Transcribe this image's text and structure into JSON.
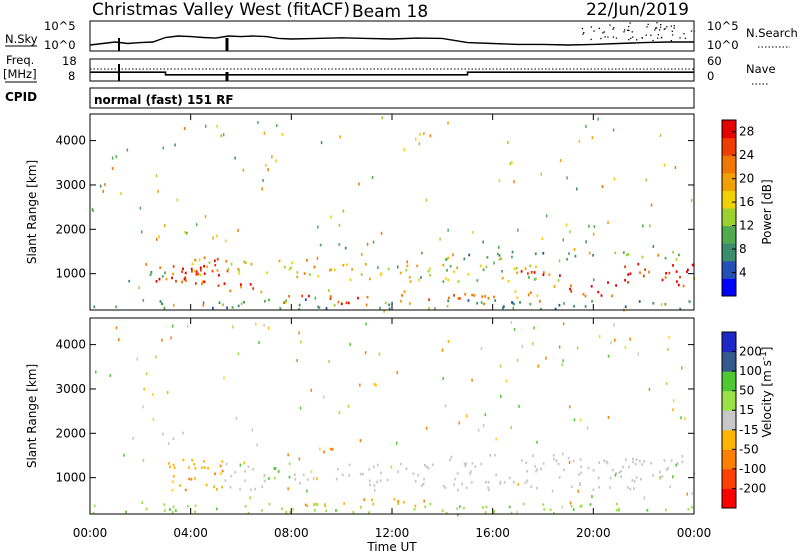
{
  "header": {
    "station": "Christmas Valley West (fitACF)",
    "beam": "Beam 18",
    "date": "22/Jun/2019"
  },
  "status_panels": {
    "nsky_label": "N.Sky",
    "nsearch_label": "N.Search",
    "noise_ticks": [
      "10^5",
      "10^0"
    ],
    "freq_label": "Freq.",
    "freq_unit": "[MHz]",
    "freq_ticks": [
      "18",
      "8"
    ],
    "nave_label": "Nave",
    "nave_ticks": [
      "60",
      "0"
    ],
    "cpid_label": "CPID",
    "cpid_text": "normal (fast) 151 RF"
  },
  "colors": {
    "power": [
      "#0000ff",
      "#2250b4",
      "#3c8c6e",
      "#50aa50",
      "#9bd232",
      "#f0d200",
      "#f0a000",
      "#f07800",
      "#f03c00",
      "#e60000"
    ],
    "velocity": [
      "#ff0000",
      "#ff4000",
      "#ff8000",
      "#ffb400",
      "#ffd220",
      "#c8c8c8",
      "#c8c8c8",
      "#9ae246",
      "#50c832",
      "#3c8c46",
      "#325a8c",
      "#2846b4",
      "#1e28c8"
    ]
  },
  "chart_data": [
    {
      "type": "line",
      "name": "noise-panel",
      "ylabel": "N.Sky",
      "yticks": [
        "10^5",
        "10^0"
      ],
      "series": [
        {
          "values_hours": [
            0,
            0.5,
            1,
            1.5,
            2,
            2.5,
            3,
            3.5,
            4,
            4.5,
            5,
            5.5,
            6,
            6.5,
            7,
            7.5,
            8,
            9,
            10,
            11,
            12,
            13,
            14,
            15,
            16,
            17,
            18,
            19,
            20,
            21,
            22,
            23,
            24
          ],
          "level_fraction": [
            0.2,
            0.25,
            0.3,
            0.25,
            0.28,
            0.3,
            0.45,
            0.5,
            0.48,
            0.45,
            0.43,
            0.5,
            0.48,
            0.5,
            0.48,
            0.42,
            0.4,
            0.42,
            0.44,
            0.42,
            0.4,
            0.43,
            0.42,
            0.28,
            0.25,
            0.22,
            0.22,
            0.2,
            0.22,
            0.25,
            0.28,
            0.3,
            0.3
          ]
        }
      ]
    },
    {
      "type": "line",
      "name": "frequency-panel",
      "ylabel": "Freq. [MHz]",
      "yticks": [
        "18",
        "8"
      ],
      "y2ticks": [
        "60",
        "0"
      ],
      "series": [
        {
          "name": "Freq.",
          "x_hours": [
            0,
            3,
            3,
            15,
            15,
            24
          ],
          "y": [
            12,
            12,
            10.8,
            10.8,
            12,
            12
          ]
        }
      ]
    },
    {
      "type": "heatmap",
      "name": "power",
      "ylabel": "Slant Range [km]",
      "xlabel": "Time UT",
      "x_ticks": [
        "00:00",
        "04:00",
        "08:00",
        "12:00",
        "16:00",
        "20:00",
        "00:00"
      ],
      "xlim_hours": [
        0,
        24
      ],
      "y_ticks": [
        1000,
        2000,
        3000,
        4000
      ],
      "ylim_km": [
        180,
        4600
      ],
      "colorbar_label": "Power [dB]",
      "colorbar_ticks": [
        4,
        8,
        12,
        16,
        20,
        24,
        28
      ],
      "colorbar_range": [
        0,
        30
      ],
      "regions": [
        {
          "t": [
            0,
            24
          ],
          "r": [
            180,
            400
          ],
          "v": 8,
          "d": 0.5
        },
        {
          "t": [
            1,
            3
          ],
          "r": [
            800,
            1100
          ],
          "v": 10,
          "d": 0.35
        },
        {
          "t": [
            2.7,
            4
          ],
          "r": [
            1800,
            2000
          ],
          "v": 12,
          "d": 0.5
        },
        {
          "t": [
            2.5,
            4.4
          ],
          "r": [
            800,
            1200
          ],
          "v": 25,
          "d": 0.8
        },
        {
          "t": [
            3.6,
            5.5
          ],
          "r": [
            700,
            1400
          ],
          "v": 27,
          "d": 0.8
        },
        {
          "t": [
            4,
            9
          ],
          "r": [
            900,
            1300
          ],
          "v": 18,
          "d": 0.6
        },
        {
          "t": [
            5.5,
            7
          ],
          "r": [
            500,
            800
          ],
          "v": 24,
          "d": 0.6
        },
        {
          "t": [
            7,
            11
          ],
          "r": [
            300,
            500
          ],
          "v": 26,
          "d": 0.7
        },
        {
          "t": [
            9,
            13
          ],
          "r": [
            800,
            1200
          ],
          "v": 16,
          "d": 0.55
        },
        {
          "t": [
            9,
            10.5
          ],
          "r": [
            1550,
            1700
          ],
          "v": 10,
          "d": 0.5
        },
        {
          "t": [
            13,
            14.3
          ],
          "r": [
            800,
            1500
          ],
          "v": 14,
          "d": 0.5
        },
        {
          "t": [
            14,
            24
          ],
          "r": [
            1300,
            1500
          ],
          "v": 10,
          "d": 0.55
        },
        {
          "t": [
            14,
            19
          ],
          "r": [
            800,
            1200
          ],
          "v": 16,
          "d": 0.55
        },
        {
          "t": [
            17,
            19.5
          ],
          "r": [
            900,
            1100
          ],
          "v": 26,
          "d": 0.65
        },
        {
          "t": [
            19,
            21
          ],
          "r": [
            400,
            800
          ],
          "v": 26,
          "d": 0.6
        },
        {
          "t": [
            21,
            24
          ],
          "r": [
            700,
            1200
          ],
          "v": 28,
          "d": 0.7
        },
        {
          "t": [
            12,
            18
          ],
          "r": [
            300,
            600
          ],
          "v": 22,
          "d": 0.5
        }
      ]
    },
    {
      "type": "heatmap",
      "name": "velocity",
      "ylabel": "Slant Range [km]",
      "xlabel": "Time UT",
      "x_ticks": [
        "00:00",
        "04:00",
        "08:00",
        "12:00",
        "16:00",
        "20:00",
        "00:00"
      ],
      "xlim_hours": [
        0,
        24
      ],
      "y_ticks": [
        1000,
        2000,
        3000,
        4000
      ],
      "ylim_km": [
        180,
        4600
      ],
      "colorbar_label": "Velocity [m s^-1]",
      "colorbar_ticks": [
        -200,
        -100,
        -50,
        -15,
        15,
        50,
        100,
        200
      ],
      "colorbar_range": [
        -250,
        250
      ],
      "regions": [
        {
          "t": [
            0,
            24
          ],
          "r": [
            180,
            400
          ],
          "v": 40,
          "d": 0.55
        },
        {
          "t": [
            2.7,
            4
          ],
          "r": [
            1800,
            2000
          ],
          "v": 0,
          "d": 0.5
        },
        {
          "t": [
            3,
            5.3
          ],
          "r": [
            700,
            1400
          ],
          "v": -40,
          "d": 0.85
        },
        {
          "t": [
            5.3,
            7
          ],
          "r": [
            700,
            1300
          ],
          "v": 0,
          "d": 0.7
        },
        {
          "t": [
            7,
            8
          ],
          "r": [
            900,
            1300
          ],
          "v": 60,
          "d": 0.6
        },
        {
          "t": [
            8,
            14
          ],
          "r": [
            800,
            1300
          ],
          "v": 0,
          "d": 0.55
        },
        {
          "t": [
            8.5,
            10
          ],
          "r": [
            1550,
            1700
          ],
          "v": -60,
          "d": 0.6
        },
        {
          "t": [
            8,
            13
          ],
          "r": [
            300,
            500
          ],
          "v": -40,
          "d": 0.5
        },
        {
          "t": [
            14,
            24
          ],
          "r": [
            700,
            1400
          ],
          "v": 0,
          "d": 0.55
        },
        {
          "t": [
            14,
            24
          ],
          "r": [
            1300,
            1500
          ],
          "v": 0,
          "d": 0.4
        }
      ]
    }
  ]
}
